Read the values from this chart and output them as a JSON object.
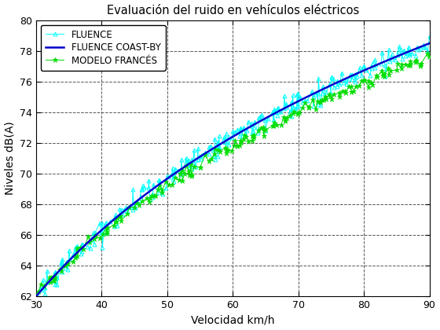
{
  "title": "Evaluación del ruido en vehículos eléctricos",
  "xlabel": "Velocidad km/h",
  "ylabel": "Niveles dB(A)",
  "xlim": [
    30,
    90
  ],
  "ylim": [
    62,
    80
  ],
  "xticks": [
    30,
    40,
    50,
    60,
    70,
    80,
    90
  ],
  "yticks": [
    62,
    64,
    66,
    68,
    70,
    72,
    74,
    76,
    78,
    80
  ],
  "fluence_color": "#00FFFF",
  "coast_by_color": "#0000CD",
  "modelo_color": "#00DD00",
  "bg_color": "#ffffff",
  "grid_color": "#555555",
  "legend_labels": [
    "FLUENCE",
    "FLUENCE COAST-BY",
    "MODELO FRANCÉS"
  ]
}
